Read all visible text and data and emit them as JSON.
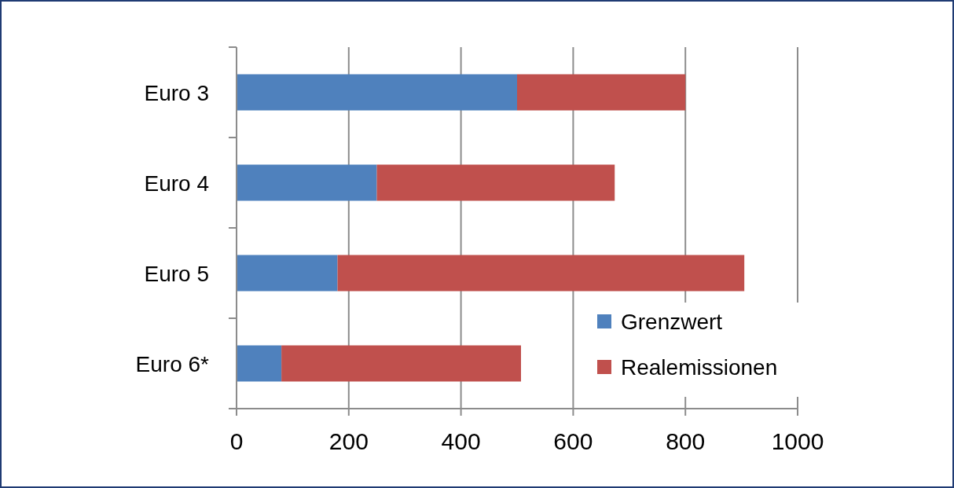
{
  "chart_data": {
    "type": "bar",
    "orientation": "horizontal",
    "stacked": true,
    "categories": [
      "Euro 3",
      "Euro 4",
      "Euro 5",
      "Euro 6*"
    ],
    "series": [
      {
        "name": "Grenzwert",
        "color": "#4f81bd",
        "values": [
          500,
          250,
          180,
          80
        ]
      },
      {
        "name": "Realemissionen",
        "color": "#c0504d",
        "values": [
          300,
          424,
          725,
          427
        ]
      }
    ],
    "xlim": [
      0,
      1000
    ],
    "xticks": [
      0,
      200,
      400,
      600,
      800,
      1000
    ],
    "grid": "x",
    "legend": "bottom right"
  }
}
